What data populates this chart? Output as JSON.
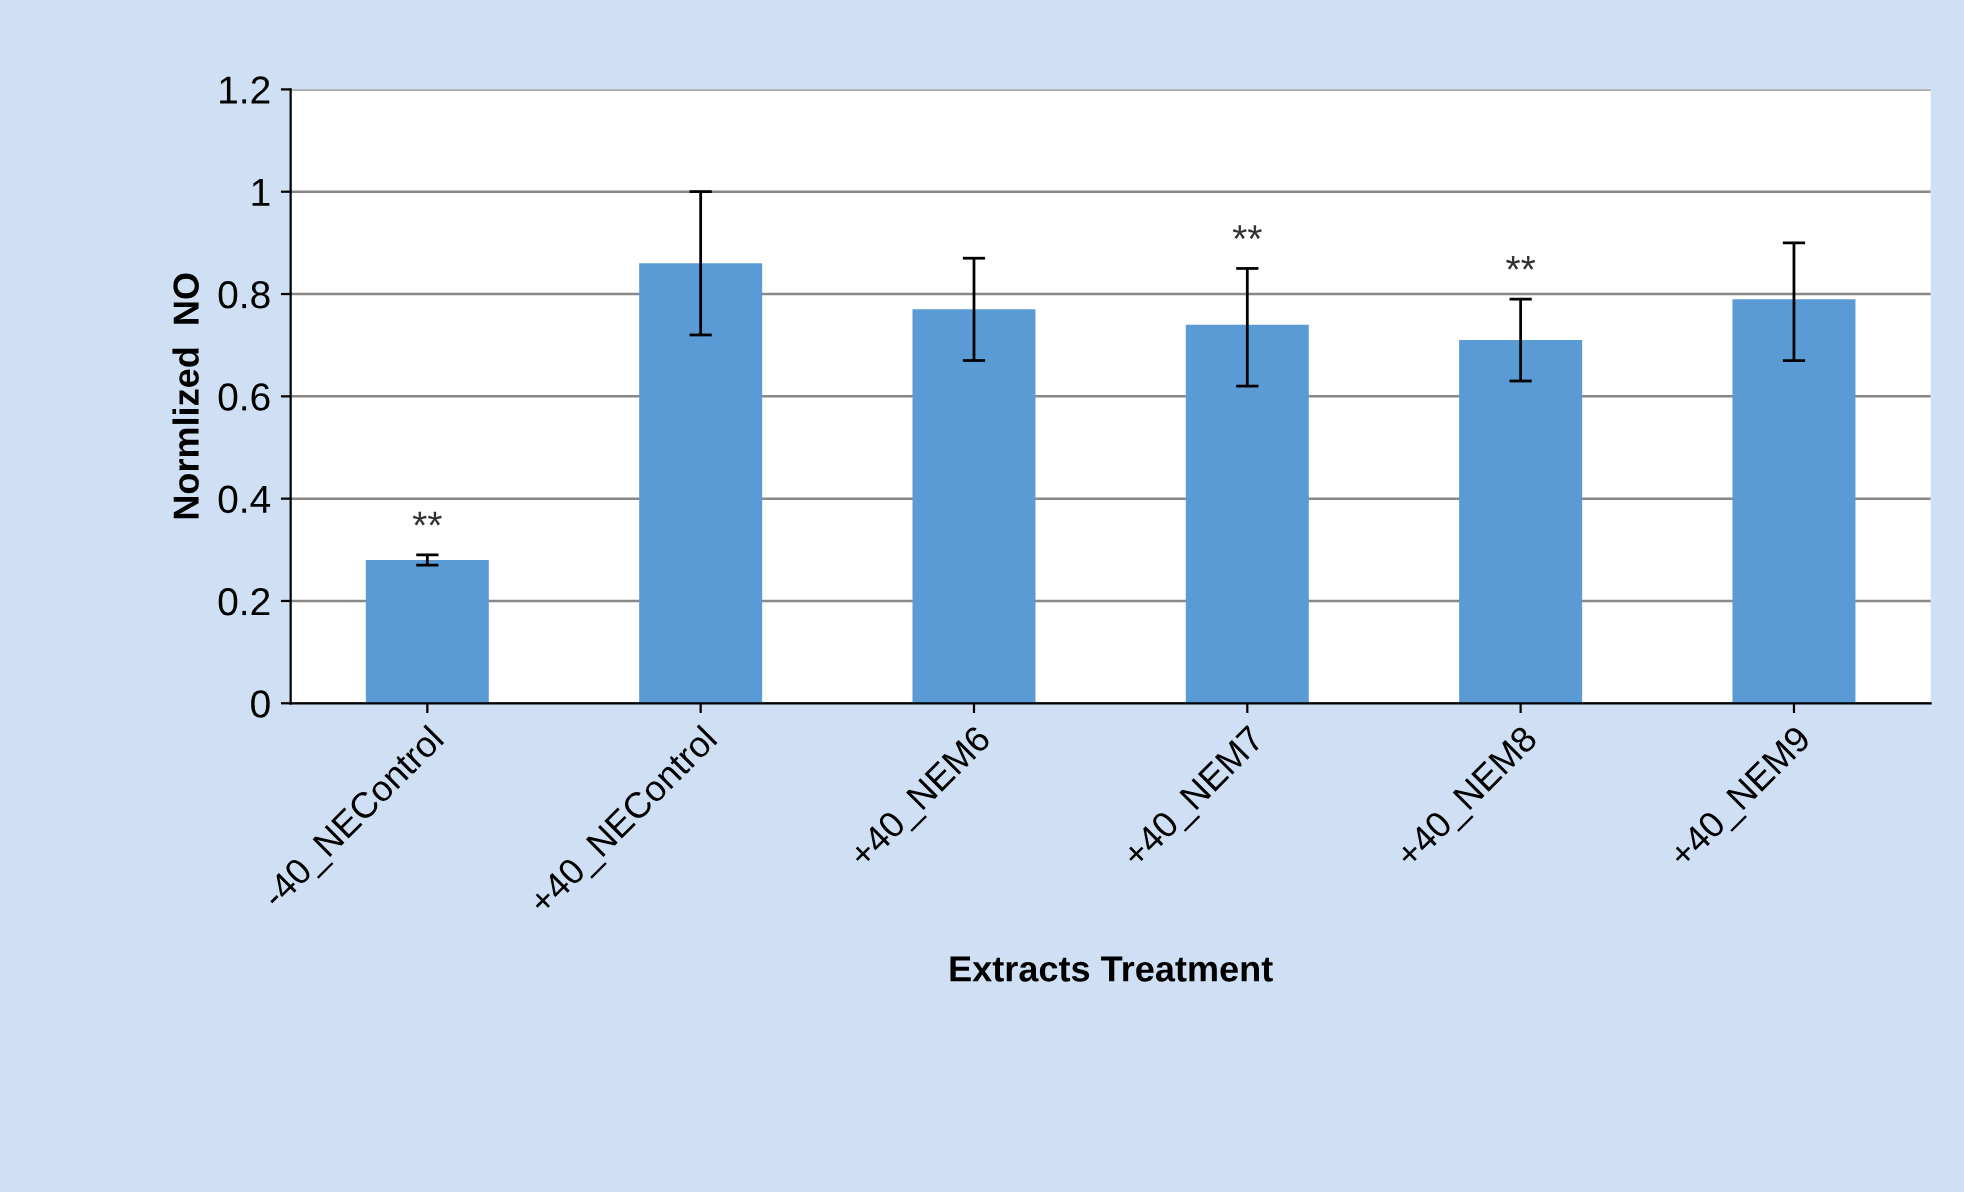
{
  "chart_data": {
    "type": "bar",
    "xlabel": "Extracts Treatment",
    "ylabel": "Normlized  NO",
    "categories": [
      "-40_NEControl",
      "+40_NEControl",
      "+40_NEM6",
      "+40_NEM7",
      "+40_NEM8",
      "+40_NEM9"
    ],
    "values": [
      0.28,
      0.86,
      0.77,
      0.74,
      0.71,
      0.79
    ],
    "errors": [
      [
        0.27,
        0.29
      ],
      [
        0.72,
        1.0
      ],
      [
        0.67,
        0.87
      ],
      [
        0.62,
        0.85
      ],
      [
        0.63,
        0.79
      ],
      [
        0.67,
        0.9
      ]
    ],
    "color": "#5b9bd5",
    "ylim": [
      0,
      1.2
    ],
    "yticks": [
      0,
      0.2,
      0.4,
      0.6,
      0.8,
      1,
      1.2
    ],
    "grid": "y",
    "annotations": [
      {
        "text": "**",
        "x": "-40_NEControl",
        "y": 0.29
      },
      {
        "text": "**",
        "x": "+40_NEM7",
        "y": 0.85
      },
      {
        "text": "**",
        "x": "+40_NEM8",
        "y": 0.79
      }
    ]
  }
}
